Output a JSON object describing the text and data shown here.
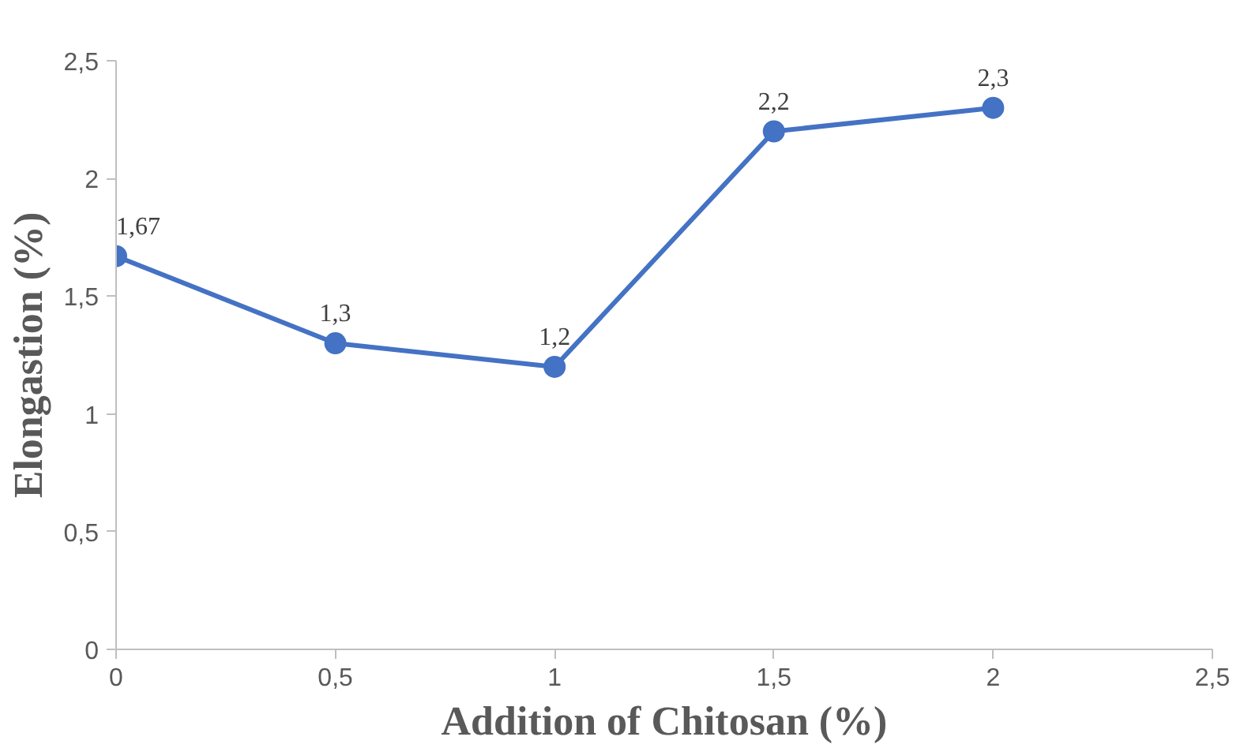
{
  "chart_data": {
    "type": "line",
    "xlabel": "Addition of Chitosan (%)",
    "ylabel": "Elongastion (%)",
    "x": [
      0,
      0.5,
      1,
      1.5,
      2
    ],
    "series": [
      {
        "color": "#4472c4",
        "values": [
          1.67,
          1.3,
          1.2,
          2.2,
          2.3
        ],
        "value_labels": [
          "1,67",
          "1,3",
          "1,2",
          "2,2",
          "2,3"
        ]
      }
    ],
    "xlim": [
      0,
      2.5
    ],
    "ylim": [
      0,
      2.5
    ],
    "xticks": [
      0,
      {
        "value": 0.5,
        "label": "0,5"
      },
      1,
      {
        "value": 1.5,
        "label": "1,5"
      },
      2,
      {
        "value": 2.5,
        "label": "2,5"
      }
    ],
    "yticks": [
      0,
      {
        "value": 0.5,
        "label": "0,5"
      },
      1,
      {
        "value": 1.5,
        "label": "1,5"
      },
      2,
      {
        "value": 2.5,
        "label": "2,5"
      }
    ],
    "grid": false,
    "marker": "circle",
    "line_style": "solid"
  }
}
